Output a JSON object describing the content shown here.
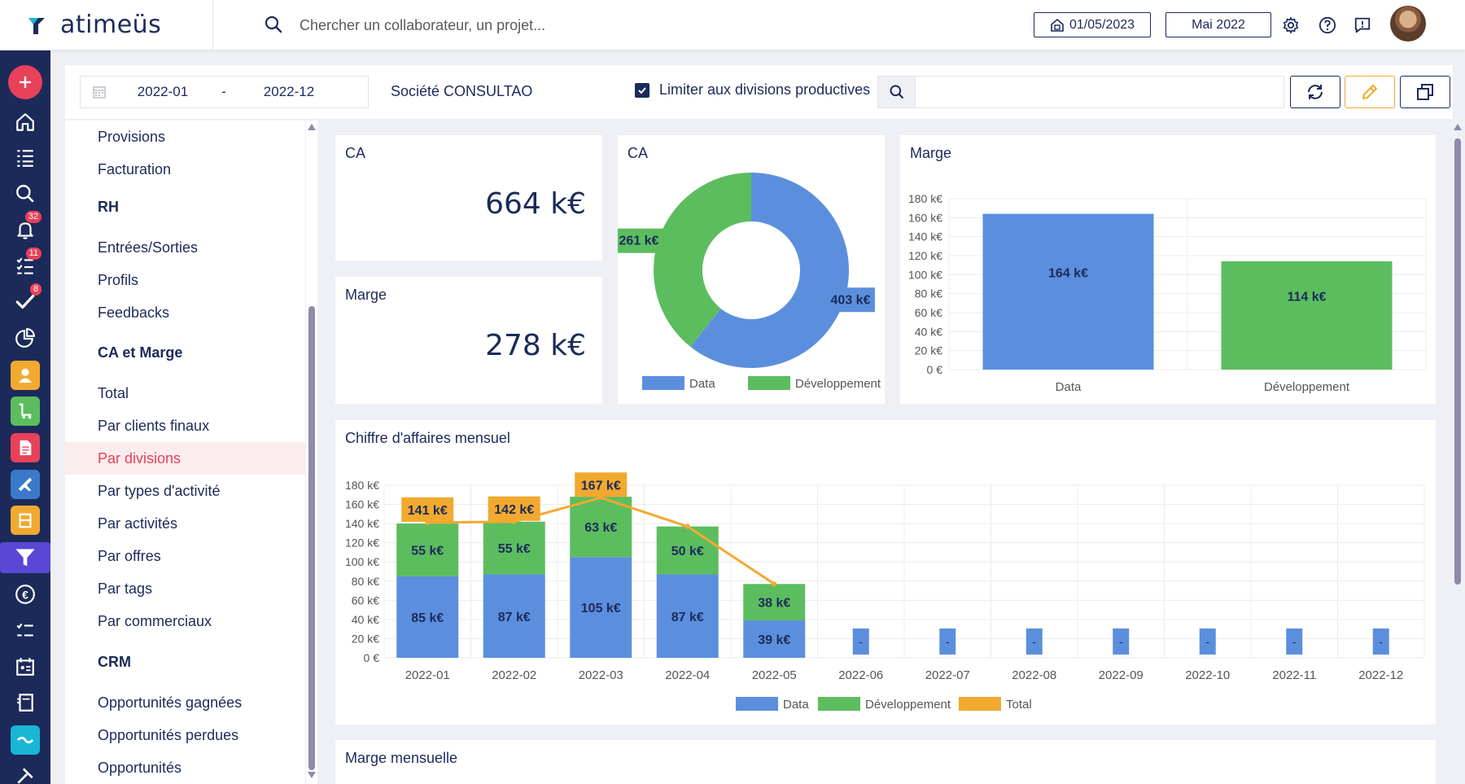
{
  "header": {
    "brand": "atimeüs",
    "search_placeholder": "Chercher un collaborateur, un projet...",
    "date_label": "01/05/2023",
    "period_label": "Mai 2022"
  },
  "leftnav": {
    "badges": {
      "notifications": "32",
      "tasks": "11",
      "validations": "8"
    }
  },
  "filters": {
    "from": "2022-01",
    "dash": "-",
    "to": "2022-12",
    "company": "Société CONSULTAO",
    "checkbox_label": "Limiter aux divisions productives",
    "checkbox_checked": true
  },
  "menu": {
    "items": [
      {
        "label": "Provisions",
        "type": "item"
      },
      {
        "label": "Facturation",
        "type": "item"
      },
      {
        "label": "RH",
        "type": "section"
      },
      {
        "label": "Entrées/Sorties",
        "type": "item"
      },
      {
        "label": "Profils",
        "type": "item"
      },
      {
        "label": "Feedbacks",
        "type": "item"
      },
      {
        "label": "CA et Marge",
        "type": "section"
      },
      {
        "label": "Total",
        "type": "item"
      },
      {
        "label": "Par clients finaux",
        "type": "item"
      },
      {
        "label": "Par divisions",
        "type": "item",
        "active": true
      },
      {
        "label": "Par types d'activité",
        "type": "item"
      },
      {
        "label": "Par activités",
        "type": "item"
      },
      {
        "label": "Par offres",
        "type": "item"
      },
      {
        "label": "Par tags",
        "type": "item"
      },
      {
        "label": "Par commerciaux",
        "type": "item"
      },
      {
        "label": "CRM",
        "type": "section"
      },
      {
        "label": "Opportunités gagnées",
        "type": "item"
      },
      {
        "label": "Opportunités perdues",
        "type": "item"
      },
      {
        "label": "Opportunités",
        "type": "item"
      }
    ]
  },
  "kpis": {
    "ca_title": "CA",
    "ca_value": "664 k€",
    "marge_title": "Marge",
    "marge_value": "278 k€"
  },
  "colors": {
    "data": "#5b8fde",
    "dev": "#5cbd5f",
    "total": "#f2a92f",
    "navy": "#1c2a5a",
    "accent": "#e8415a"
  },
  "chart_data": [
    {
      "type": "pie",
      "title": "CA",
      "categories": [
        "Data",
        "Développement"
      ],
      "values": [
        403,
        261
      ],
      "labels": [
        "403 k€",
        "261 k€"
      ],
      "legend": [
        "Data",
        "Développement"
      ]
    },
    {
      "type": "bar",
      "title": "Marge",
      "categories": [
        "Data",
        "Développement"
      ],
      "values": [
        164,
        114
      ],
      "labels": [
        "164 k€",
        "114 k€"
      ],
      "yticks": [
        "0 €",
        "20 k€",
        "40 k€",
        "60 k€",
        "80 k€",
        "100 k€",
        "120 k€",
        "140 k€",
        "160 k€",
        "180 k€"
      ],
      "ylim": [
        0,
        180
      ]
    },
    {
      "type": "bar",
      "title": "Chiffre d'affaires mensuel",
      "categories": [
        "2022-01",
        "2022-02",
        "2022-03",
        "2022-04",
        "2022-05",
        "2022-06",
        "2022-07",
        "2022-08",
        "2022-09",
        "2022-10",
        "2022-11",
        "2022-12"
      ],
      "series": [
        {
          "name": "Data",
          "values": [
            85,
            87,
            105,
            87,
            39,
            0,
            0,
            0,
            0,
            0,
            0,
            0
          ],
          "labels": [
            "85 k€",
            "87 k€",
            "105 k€",
            "87 k€",
            "39 k€",
            "-",
            "-",
            "-",
            "-",
            "-",
            "-",
            "-"
          ]
        },
        {
          "name": "Développement",
          "values": [
            55,
            55,
            63,
            50,
            38,
            null,
            null,
            null,
            null,
            null,
            null,
            null
          ],
          "labels": [
            "55 k€",
            "55 k€",
            "63 k€",
            "50 k€",
            "38 k€"
          ]
        },
        {
          "name": "Total",
          "values": [
            141,
            142,
            167,
            137,
            77,
            null,
            null,
            null,
            null,
            null,
            null,
            null
          ],
          "labels": [
            "141 k€",
            "142 k€",
            "167 k€"
          ]
        }
      ],
      "yticks": [
        "0 €",
        "20 k€",
        "40 k€",
        "60 k€",
        "80 k€",
        "100 k€",
        "120 k€",
        "140 k€",
        "160 k€",
        "180 k€"
      ],
      "ylim": [
        0,
        180
      ],
      "legend": [
        "Data",
        "Développement",
        "Total"
      ]
    },
    {
      "type": "bar",
      "title": "Marge mensuelle"
    }
  ]
}
